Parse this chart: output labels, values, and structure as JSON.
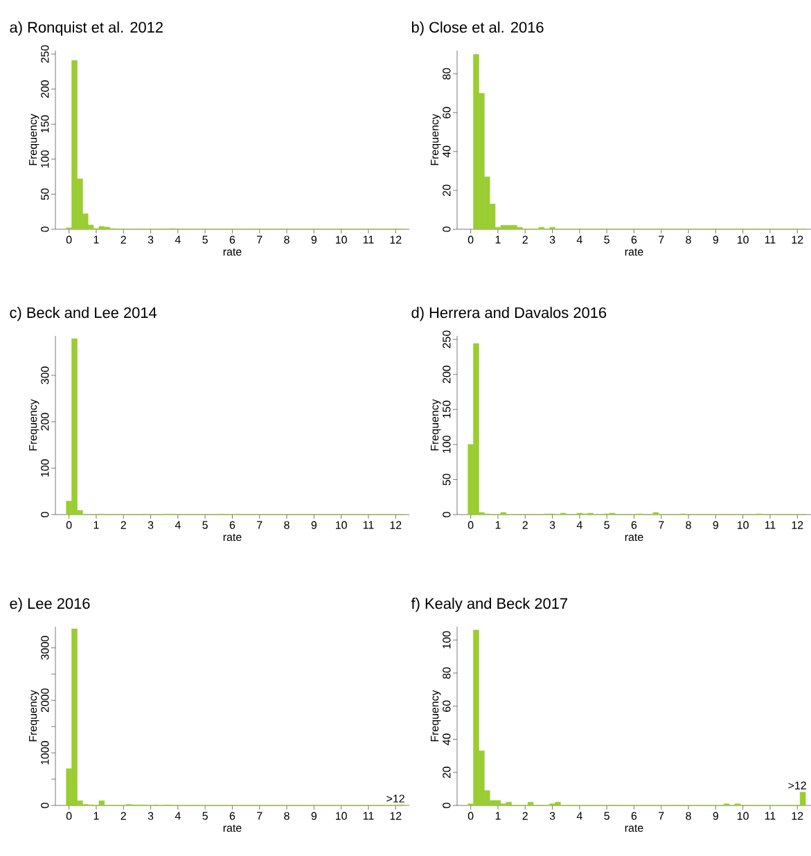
{
  "chart_data": [
    {
      "type": "histogram",
      "title": "a) Ronquist et al. 2012",
      "xlabel": "rate",
      "ylabel": "Frequency",
      "color": "#9acd32",
      "bins": [
        -0.1,
        0.1,
        0.3,
        0.5,
        0.7,
        0.9,
        1.1,
        1.3,
        1.5,
        1.7,
        1.9,
        2.1,
        2.3,
        2.5,
        2.7,
        2.9,
        3.1,
        3.3,
        3.5,
        3.7,
        3.9,
        4.1,
        4.3,
        4.5,
        4.7,
        4.9,
        5.1,
        5.3,
        5.5,
        5.7,
        5.9,
        6.1,
        6.3,
        6.5,
        6.7,
        6.9,
        7.1,
        7.3,
        7.5,
        7.7,
        7.9,
        8.1,
        8.3,
        8.5,
        8.7,
        8.9,
        9.1,
        9.3,
        9.5,
        9.7,
        9.9,
        10.1,
        10.3,
        10.5,
        10.7,
        10.9,
        11.1,
        11.3,
        11.5,
        11.7,
        11.9,
        12.1,
        12.3
      ],
      "values": [
        2,
        241,
        72,
        22,
        6,
        1,
        4,
        3,
        1,
        0,
        0,
        0,
        0,
        0,
        0,
        0,
        0,
        0,
        0,
        1,
        0,
        0,
        0,
        0,
        0,
        0,
        0,
        0,
        0,
        0,
        0,
        0,
        0,
        0,
        0,
        0,
        0,
        0,
        0,
        0,
        0,
        0,
        0,
        0,
        0,
        0,
        0,
        0,
        0,
        0,
        0,
        0,
        0,
        0,
        0,
        0,
        0,
        0,
        0,
        0,
        0,
        0
      ],
      "xlim": [
        -0.5,
        12.5
      ],
      "xticks": [
        0,
        1,
        2,
        3,
        4,
        5,
        6,
        7,
        8,
        9,
        10,
        11,
        12
      ],
      "ylim": [
        0,
        255
      ],
      "yticks": [
        0,
        50,
        100,
        150,
        200,
        250
      ]
    },
    {
      "type": "histogram",
      "title": "b) Close et al. 2016",
      "xlabel": "rate",
      "ylabel": "Frequency",
      "color": "#9acd32",
      "bins": [
        0.1,
        0.3,
        0.5,
        0.7,
        0.9,
        1.1,
        1.3,
        1.5,
        1.7,
        1.9,
        2.1,
        2.3,
        2.5,
        2.7,
        2.9,
        3.1,
        3.3,
        3.5,
        3.7,
        3.9,
        4.1,
        4.3,
        4.5,
        4.7,
        4.9,
        5.1,
        5.3,
        5.5,
        5.7,
        5.9,
        6.1,
        6.3,
        6.5,
        6.7,
        6.9,
        7.1,
        7.3,
        7.5,
        7.7,
        7.9,
        8.1,
        8.3,
        8.5,
        8.7,
        8.9,
        9.1,
        9.3,
        9.5,
        9.7,
        9.9,
        10.1,
        10.3,
        10.5,
        10.7,
        10.9,
        11.1,
        11.3,
        11.5,
        11.7,
        11.9,
        12.1,
        12.3
      ],
      "values": [
        90,
        70,
        27,
        13,
        1,
        2,
        2,
        2,
        1,
        0,
        0,
        0,
        1,
        0,
        1,
        0,
        0,
        0,
        0,
        0,
        0,
        0,
        0,
        0,
        0,
        0,
        0,
        0,
        0,
        0,
        0,
        0,
        0,
        0,
        0,
        0,
        0,
        0,
        0,
        0,
        0,
        0,
        0,
        0,
        0,
        0,
        0,
        0,
        0,
        0,
        0,
        0,
        0,
        0,
        0,
        0,
        0,
        0,
        0,
        0,
        0
      ],
      "xlim": [
        -0.5,
        12.5
      ],
      "xticks": [
        0,
        1,
        2,
        3,
        4,
        5,
        6,
        7,
        8,
        9,
        10,
        11,
        12
      ],
      "ylim": [
        0,
        92
      ],
      "yticks": [
        0,
        20,
        40,
        60,
        80
      ]
    },
    {
      "type": "histogram",
      "title": "c) Beck and Lee 2014",
      "xlabel": "rate",
      "ylabel": "Frequency",
      "color": "#9acd32",
      "bins": [
        -0.1,
        0.1,
        0.3,
        0.5,
        0.7,
        0.9,
        1.1,
        1.3,
        1.5,
        1.7,
        1.9,
        2.1,
        2.3,
        2.5,
        2.7,
        2.9,
        3.1,
        3.3,
        3.5,
        3.7,
        3.9,
        4.1,
        4.3,
        4.5,
        4.7,
        4.9,
        5.1,
        5.3,
        5.5,
        5.7,
        5.9,
        6.1,
        6.3,
        6.5,
        6.7,
        6.9,
        7.1,
        7.3,
        7.5,
        7.7,
        7.9,
        8.1,
        8.3,
        8.5,
        8.7,
        8.9,
        9.1,
        9.3,
        9.5,
        9.7,
        9.9,
        10.1,
        10.3,
        10.5,
        10.7,
        10.9,
        11.1,
        11.3,
        11.5,
        11.7,
        11.9,
        12.1,
        12.3
      ],
      "values": [
        29,
        379,
        9,
        0,
        0,
        0,
        1,
        0,
        0,
        0,
        0,
        0,
        0,
        0,
        1,
        0,
        0,
        0,
        1,
        1,
        0,
        0,
        0,
        0,
        0,
        0,
        0,
        0,
        1,
        0,
        0,
        1,
        0,
        0,
        0,
        0,
        0,
        0,
        0,
        0,
        0,
        0,
        0,
        0,
        0,
        0,
        0,
        0,
        0,
        0,
        0,
        0,
        0,
        0,
        0,
        0,
        0,
        0,
        0,
        0,
        0,
        0
      ],
      "xlim": [
        -0.5,
        12.5
      ],
      "xticks": [
        0,
        1,
        2,
        3,
        4,
        5,
        6,
        7,
        8,
        9,
        10,
        11,
        12
      ],
      "ylim": [
        0,
        385
      ],
      "yticks": [
        0,
        100,
        200,
        300
      ]
    },
    {
      "type": "histogram",
      "title": "d) Herrera and Davalos 2016",
      "xlabel": "rate",
      "ylabel": "Frequency",
      "color": "#9acd32",
      "bins": [
        -0.1,
        0.1,
        0.3,
        0.5,
        0.7,
        0.9,
        1.1,
        1.3,
        1.5,
        1.7,
        1.9,
        2.1,
        2.3,
        2.5,
        2.7,
        2.9,
        3.1,
        3.3,
        3.5,
        3.7,
        3.9,
        4.1,
        4.3,
        4.5,
        4.7,
        4.9,
        5.1,
        5.3,
        5.5,
        5.7,
        5.9,
        6.1,
        6.3,
        6.5,
        6.7,
        6.9,
        7.1,
        7.3,
        7.5,
        7.7,
        7.9,
        8.1,
        8.3,
        8.5,
        8.7,
        8.9,
        9.1,
        9.3,
        9.5,
        9.7,
        9.9,
        10.1,
        10.3,
        10.5,
        10.7,
        10.9,
        11.1,
        11.3,
        11.5,
        11.7,
        11.9,
        12.1,
        12.3
      ],
      "values": [
        100,
        244,
        3,
        1,
        0,
        0,
        3,
        0,
        0,
        0,
        0,
        0,
        0,
        0,
        1,
        1,
        0,
        2,
        0,
        0,
        2,
        1,
        2,
        0,
        0,
        1,
        2,
        0,
        0,
        0,
        0,
        1,
        0,
        0,
        3,
        0,
        0,
        0,
        0,
        1,
        0,
        0,
        0,
        0,
        0,
        0,
        0,
        0,
        0,
        0,
        0,
        0,
        0,
        1,
        0,
        0,
        0,
        0,
        0,
        0,
        0,
        0
      ],
      "xlim": [
        -0.5,
        12.5
      ],
      "xticks": [
        0,
        1,
        2,
        3,
        4,
        5,
        6,
        7,
        8,
        9,
        10,
        11,
        12
      ],
      "ylim": [
        0,
        255
      ],
      "yticks": [
        0,
        50,
        100,
        150,
        200,
        250
      ]
    },
    {
      "type": "histogram",
      "title": "e) Lee 2016",
      "xlabel": "rate",
      "ylabel": "Frequency",
      "color": "#9acd32",
      "bins": [
        -0.1,
        0.1,
        0.3,
        0.5,
        0.7,
        0.9,
        1.1,
        1.3,
        1.5,
        1.7,
        1.9,
        2.1,
        2.3,
        2.5,
        2.7,
        2.9,
        3.1,
        3.3,
        3.5,
        3.7,
        3.9,
        4.1,
        4.3,
        4.5,
        4.7,
        4.9,
        5.1,
        5.3,
        5.5,
        5.7,
        5.9,
        6.1,
        6.3,
        6.5,
        6.7,
        6.9,
        7.1,
        7.3,
        7.5,
        7.7,
        7.9,
        8.1,
        8.3,
        8.5,
        8.7,
        8.9,
        9.1,
        9.3,
        9.5,
        9.7,
        9.9,
        10.1,
        10.3,
        10.5,
        10.7,
        10.9,
        11.1,
        11.3,
        11.5,
        11.7,
        11.9,
        12.1,
        12.3
      ],
      "values": [
        700,
        3360,
        90,
        20,
        10,
        0,
        90,
        0,
        0,
        0,
        0,
        20,
        10,
        10,
        10,
        0,
        10,
        0,
        10,
        0,
        0,
        0,
        0,
        0,
        0,
        0,
        0,
        0,
        0,
        0,
        0,
        0,
        0,
        0,
        0,
        0,
        0,
        0,
        0,
        0,
        0,
        0,
        0,
        0,
        0,
        0,
        0,
        0,
        0,
        0,
        0,
        0,
        0,
        0,
        0,
        0,
        0,
        0,
        0,
        0,
        0,
        10
      ],
      "xlim": [
        -0.5,
        12.5
      ],
      "xticks": [
        0,
        1,
        2,
        3,
        4,
        5,
        6,
        7,
        8,
        9,
        10,
        11,
        12
      ],
      "ylim": [
        0,
        3400
      ],
      "yticks": [
        0,
        {
          "value": 500,
          "label": null
        },
        1000,
        {
          "value": 1500,
          "label": null
        },
        2000,
        {
          "value": 2500,
          "label": null
        },
        3000
      ],
      "annotations": [
        {
          "text": ">12",
          "x": 12.2,
          "y": 3
        }
      ]
    },
    {
      "type": "histogram",
      "title": "f) Kealy and Beck 2017",
      "xlabel": "rate",
      "ylabel": "Frequency",
      "color": "#9acd32",
      "bins": [
        -0.1,
        0.1,
        0.3,
        0.5,
        0.7,
        0.9,
        1.1,
        1.3,
        1.5,
        1.7,
        1.9,
        2.1,
        2.3,
        2.5,
        2.7,
        2.9,
        3.1,
        3.3,
        3.5,
        3.7,
        3.9,
        4.1,
        4.3,
        4.5,
        4.7,
        4.9,
        5.1,
        5.3,
        5.5,
        5.7,
        5.9,
        6.1,
        6.3,
        6.5,
        6.7,
        6.9,
        7.1,
        7.3,
        7.5,
        7.7,
        7.9,
        8.1,
        8.3,
        8.5,
        8.7,
        8.9,
        9.1,
        9.3,
        9.5,
        9.7,
        9.9,
        10.1,
        10.3,
        10.5,
        10.7,
        10.9,
        11.1,
        11.3,
        11.5,
        11.7,
        11.9,
        12.1,
        12.3
      ],
      "values": [
        1,
        106,
        33,
        9,
        3,
        3,
        1,
        2,
        0,
        0,
        0,
        2,
        0,
        0,
        0,
        1,
        2,
        0,
        0,
        0,
        0,
        0,
        0,
        0,
        0,
        0,
        0,
        0,
        0,
        0,
        0,
        0,
        0,
        0,
        0,
        0,
        0,
        0,
        0,
        0,
        0,
        0,
        0,
        0,
        0,
        0,
        0,
        1,
        0,
        1,
        0,
        0,
        0,
        0,
        0,
        0,
        0,
        0,
        0,
        0,
        0,
        8
      ],
      "xlim": [
        -0.5,
        12.5
      ],
      "xticks": [
        0,
        1,
        2,
        3,
        4,
        5,
        6,
        7,
        8,
        9,
        10,
        11,
        12
      ],
      "ylim": [
        0,
        108
      ],
      "yticks": [
        0,
        20,
        40,
        60,
        80,
        100
      ],
      "annotations": [
        {
          "text": ">12",
          "x": 12.2,
          "y": 8
        }
      ]
    }
  ]
}
